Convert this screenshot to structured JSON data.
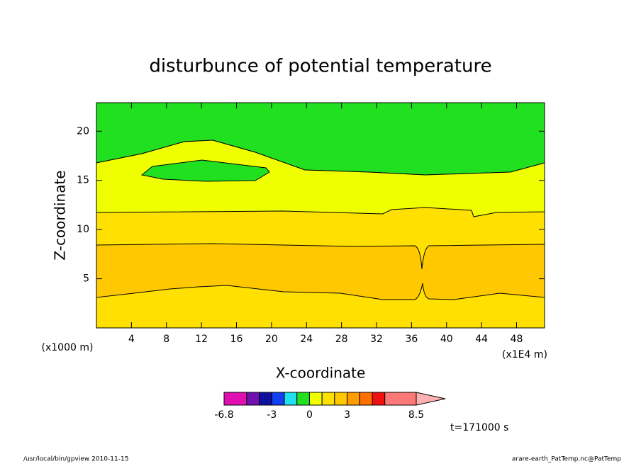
{
  "chart_data": {
    "type": "contour",
    "title": "disturbunce of potential temperature",
    "x_label": "X-coordinate",
    "y_label": "Z-coordinate",
    "x_unit": "(x1000 m)",
    "x_scale": "(x1E4 m)",
    "xlim": [
      0,
      51.2
    ],
    "xticks": [
      4,
      8,
      12,
      16,
      20,
      24,
      28,
      32,
      36,
      40,
      44,
      48
    ],
    "ylim": [
      0,
      22.9
    ],
    "yticks": [
      5,
      10,
      15,
      20
    ],
    "levels": [
      -6.8,
      -5,
      -4,
      -3,
      -2,
      -1,
      0,
      1,
      2,
      3,
      4,
      5,
      6,
      8.5
    ],
    "colors": [
      "#e010b0",
      "#7010b0",
      "#1010a0",
      "#1040f0",
      "#20e0f0",
      "#20e020",
      "#f0ff00",
      "#ffe000",
      "#ffc800",
      "#ff9c00",
      "#ff7000",
      "#f01010",
      "#ff7878"
    ],
    "extend_color": "#ffb0b0",
    "colorbar_ticks": [
      -6.8,
      -3,
      0,
      3,
      8.5
    ],
    "time_label": "t=171000 s",
    "footer_left": "/usr/local/bin/gpview  2010-11-15",
    "footer_right": "arare-earth_PatTemp.nc@PatTemp"
  }
}
